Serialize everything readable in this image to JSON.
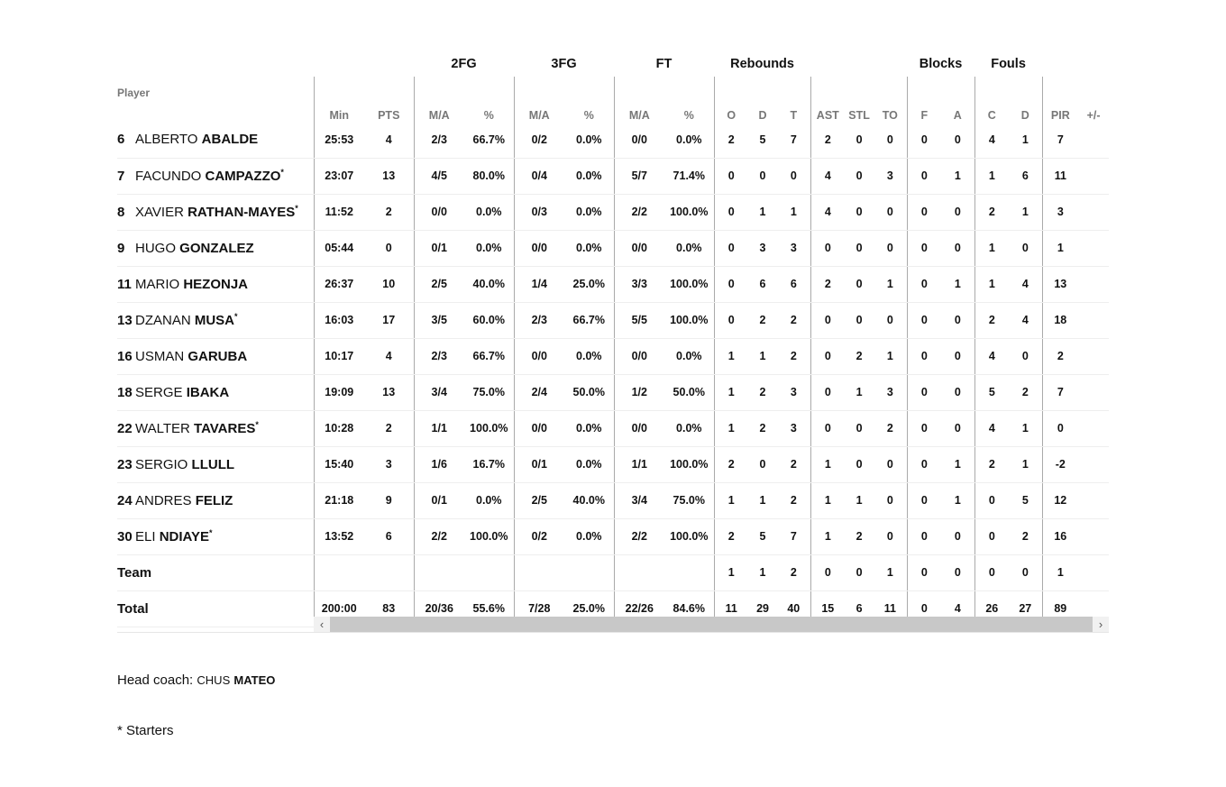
{
  "groups": {
    "fg2": "2FG",
    "fg3": "3FG",
    "ft": "FT",
    "reb": "Rebounds",
    "blk": "Blocks",
    "fouls": "Fouls"
  },
  "columns": [
    "Player",
    "Min",
    "PTS",
    "M/A",
    "%",
    "M/A",
    "%",
    "M/A",
    "%",
    "O",
    "D",
    "T",
    "AST",
    "STL",
    "TO",
    "F",
    "A",
    "C",
    "D",
    "PIR",
    "+/-"
  ],
  "players": [
    {
      "num": "6",
      "first": "ALBERTO",
      "last": "ABALDE",
      "starter": false,
      "stats": [
        "25:53",
        "4",
        "2/3",
        "66.7%",
        "0/2",
        "0.0%",
        "0/0",
        "0.0%",
        "2",
        "5",
        "7",
        "2",
        "0",
        "0",
        "0",
        "0",
        "4",
        "1",
        "7",
        ""
      ]
    },
    {
      "num": "7",
      "first": "FACUNDO",
      "last": "CAMPAZZO",
      "starter": true,
      "stats": [
        "23:07",
        "13",
        "4/5",
        "80.0%",
        "0/4",
        "0.0%",
        "5/7",
        "71.4%",
        "0",
        "0",
        "0",
        "4",
        "0",
        "3",
        "0",
        "1",
        "1",
        "6",
        "11",
        ""
      ]
    },
    {
      "num": "8",
      "first": "XAVIER",
      "last": "RATHAN-MAYES",
      "starter": true,
      "stats": [
        "11:52",
        "2",
        "0/0",
        "0.0%",
        "0/3",
        "0.0%",
        "2/2",
        "100.0%",
        "0",
        "1",
        "1",
        "4",
        "0",
        "0",
        "0",
        "0",
        "2",
        "1",
        "3",
        ""
      ]
    },
    {
      "num": "9",
      "first": "HUGO",
      "last": "GONZALEZ",
      "starter": false,
      "stats": [
        "05:44",
        "0",
        "0/1",
        "0.0%",
        "0/0",
        "0.0%",
        "0/0",
        "0.0%",
        "0",
        "3",
        "3",
        "0",
        "0",
        "0",
        "0",
        "0",
        "1",
        "0",
        "1",
        ""
      ]
    },
    {
      "num": "11",
      "first": "MARIO",
      "last": "HEZONJA",
      "starter": false,
      "stats": [
        "26:37",
        "10",
        "2/5",
        "40.0%",
        "1/4",
        "25.0%",
        "3/3",
        "100.0%",
        "0",
        "6",
        "6",
        "2",
        "0",
        "1",
        "0",
        "1",
        "1",
        "4",
        "13",
        ""
      ]
    },
    {
      "num": "13",
      "first": "DZANAN",
      "last": "MUSA",
      "starter": true,
      "stats": [
        "16:03",
        "17",
        "3/5",
        "60.0%",
        "2/3",
        "66.7%",
        "5/5",
        "100.0%",
        "0",
        "2",
        "2",
        "0",
        "0",
        "0",
        "0",
        "0",
        "2",
        "4",
        "18",
        ""
      ]
    },
    {
      "num": "16",
      "first": "USMAN",
      "last": "GARUBA",
      "starter": false,
      "stats": [
        "10:17",
        "4",
        "2/3",
        "66.7%",
        "0/0",
        "0.0%",
        "0/0",
        "0.0%",
        "1",
        "1",
        "2",
        "0",
        "2",
        "1",
        "0",
        "0",
        "4",
        "0",
        "2",
        ""
      ]
    },
    {
      "num": "18",
      "first": "SERGE",
      "last": "IBAKA",
      "starter": false,
      "stats": [
        "19:09",
        "13",
        "3/4",
        "75.0%",
        "2/4",
        "50.0%",
        "1/2",
        "50.0%",
        "1",
        "2",
        "3",
        "0",
        "1",
        "3",
        "0",
        "0",
        "5",
        "2",
        "7",
        ""
      ]
    },
    {
      "num": "22",
      "first": "WALTER",
      "last": "TAVARES",
      "starter": true,
      "stats": [
        "10:28",
        "2",
        "1/1",
        "100.0%",
        "0/0",
        "0.0%",
        "0/0",
        "0.0%",
        "1",
        "2",
        "3",
        "0",
        "0",
        "2",
        "0",
        "0",
        "4",
        "1",
        "0",
        ""
      ]
    },
    {
      "num": "23",
      "first": "SERGIO",
      "last": "LLULL",
      "starter": false,
      "stats": [
        "15:40",
        "3",
        "1/6",
        "16.7%",
        "0/1",
        "0.0%",
        "1/1",
        "100.0%",
        "2",
        "0",
        "2",
        "1",
        "0",
        "0",
        "0",
        "1",
        "2",
        "1",
        "-2",
        ""
      ]
    },
    {
      "num": "24",
      "first": "ANDRES",
      "last": "FELIZ",
      "starter": false,
      "stats": [
        "21:18",
        "9",
        "0/1",
        "0.0%",
        "2/5",
        "40.0%",
        "3/4",
        "75.0%",
        "1",
        "1",
        "2",
        "1",
        "1",
        "0",
        "0",
        "1",
        "0",
        "5",
        "12",
        ""
      ]
    },
    {
      "num": "30",
      "first": "ELI",
      "last": "NDIAYE",
      "starter": true,
      "stats": [
        "13:52",
        "6",
        "2/2",
        "100.0%",
        "0/2",
        "0.0%",
        "2/2",
        "100.0%",
        "2",
        "5",
        "7",
        "1",
        "2",
        "0",
        "0",
        "0",
        "0",
        "2",
        "16",
        ""
      ]
    }
  ],
  "team": {
    "label": "Team",
    "stats": [
      "",
      "",
      "",
      "",
      "",
      "",
      "",
      "",
      "1",
      "1",
      "2",
      "0",
      "0",
      "1",
      "0",
      "0",
      "0",
      "0",
      "1",
      ""
    ]
  },
  "total": {
    "label": "Total",
    "stats": [
      "200:00",
      "83",
      "20/36",
      "55.6%",
      "7/28",
      "25.0%",
      "22/26",
      "84.6%",
      "11",
      "29",
      "40",
      "15",
      "6",
      "11",
      "0",
      "4",
      "26",
      "27",
      "89",
      ""
    ]
  },
  "starter_mark": "*",
  "coach": {
    "label": "Head coach:",
    "first": "CHUS",
    "last": "MATEO"
  },
  "footnote": "* Starters",
  "scrollbar": {
    "left_arrow": "‹",
    "right_arrow": "›"
  }
}
